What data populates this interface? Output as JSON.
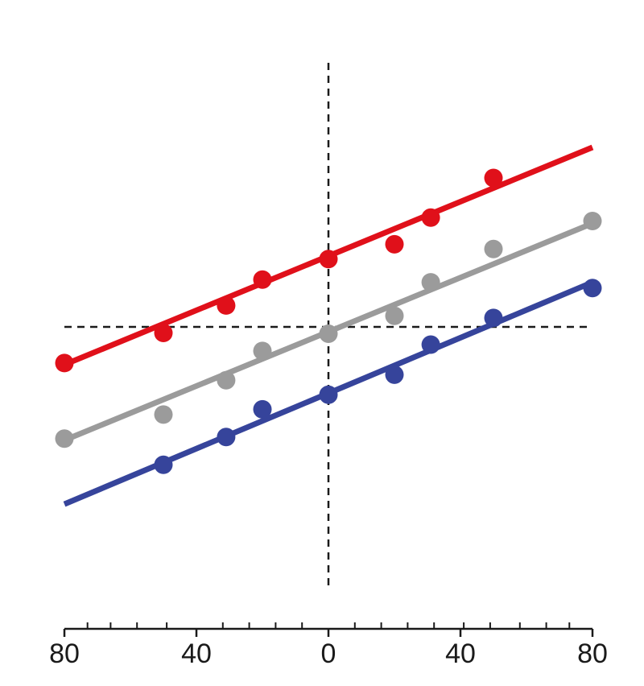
{
  "chart_data": {
    "type": "scatter",
    "title": "",
    "xlabel": "",
    "ylabel": "",
    "xlim": [
      -80,
      80
    ],
    "ylim": [
      -1,
      1
    ],
    "x_ticks_major": [
      -80,
      -40,
      0,
      40,
      80
    ],
    "x_tick_labels": [
      "80",
      "40",
      "0",
      "40",
      "80"
    ],
    "x_ticks_minor": [
      -73,
      -66,
      -58,
      -49,
      -32,
      -24,
      -16,
      -8,
      8,
      16,
      24,
      32,
      41,
      49,
      58,
      66,
      73
    ],
    "reference_lines": {
      "x": 0,
      "y": 0,
      "style": "dashed",
      "color": "#1a1a1a"
    },
    "grid": false,
    "legend": "none",
    "series": [
      {
        "color": "#e0101a",
        "points": [
          {
            "x": -80,
            "y": -0.137
          },
          {
            "x": -50,
            "y": -0.023
          },
          {
            "x": -31,
            "y": 0.081
          },
          {
            "x": -20,
            "y": 0.179
          },
          {
            "x": 0,
            "y": 0.257
          },
          {
            "x": 20,
            "y": 0.313
          },
          {
            "x": 31,
            "y": 0.414
          },
          {
            "x": 50,
            "y": 0.564
          }
        ],
        "fit": {
          "x": [
            -80,
            80
          ],
          "y": [
            -0.143,
            0.68
          ]
        }
      },
      {
        "color": "#9b9b9b",
        "points": [
          {
            "x": -80,
            "y": -0.423
          },
          {
            "x": -50,
            "y": -0.332
          },
          {
            "x": -31,
            "y": -0.202
          },
          {
            "x": -20,
            "y": -0.091
          },
          {
            "x": 0,
            "y": -0.026
          },
          {
            "x": 20,
            "y": 0.042
          },
          {
            "x": 31,
            "y": 0.169
          },
          {
            "x": 50,
            "y": 0.295
          },
          {
            "x": 80,
            "y": 0.401
          }
        ],
        "fit": {
          "x": [
            -80,
            80
          ],
          "y": [
            -0.429,
            0.392
          ]
        }
      },
      {
        "color": "#36449b",
        "points": [
          {
            "x": -50,
            "y": -0.522
          },
          {
            "x": -31,
            "y": -0.417
          },
          {
            "x": -20,
            "y": -0.312
          },
          {
            "x": 0,
            "y": -0.257
          },
          {
            "x": 20,
            "y": -0.181
          },
          {
            "x": 31,
            "y": -0.067
          },
          {
            "x": 50,
            "y": 0.034
          },
          {
            "x": 80,
            "y": 0.147
          }
        ],
        "fit": {
          "x": [
            -80,
            80
          ],
          "y": [
            -0.671,
            0.169
          ]
        }
      }
    ]
  }
}
